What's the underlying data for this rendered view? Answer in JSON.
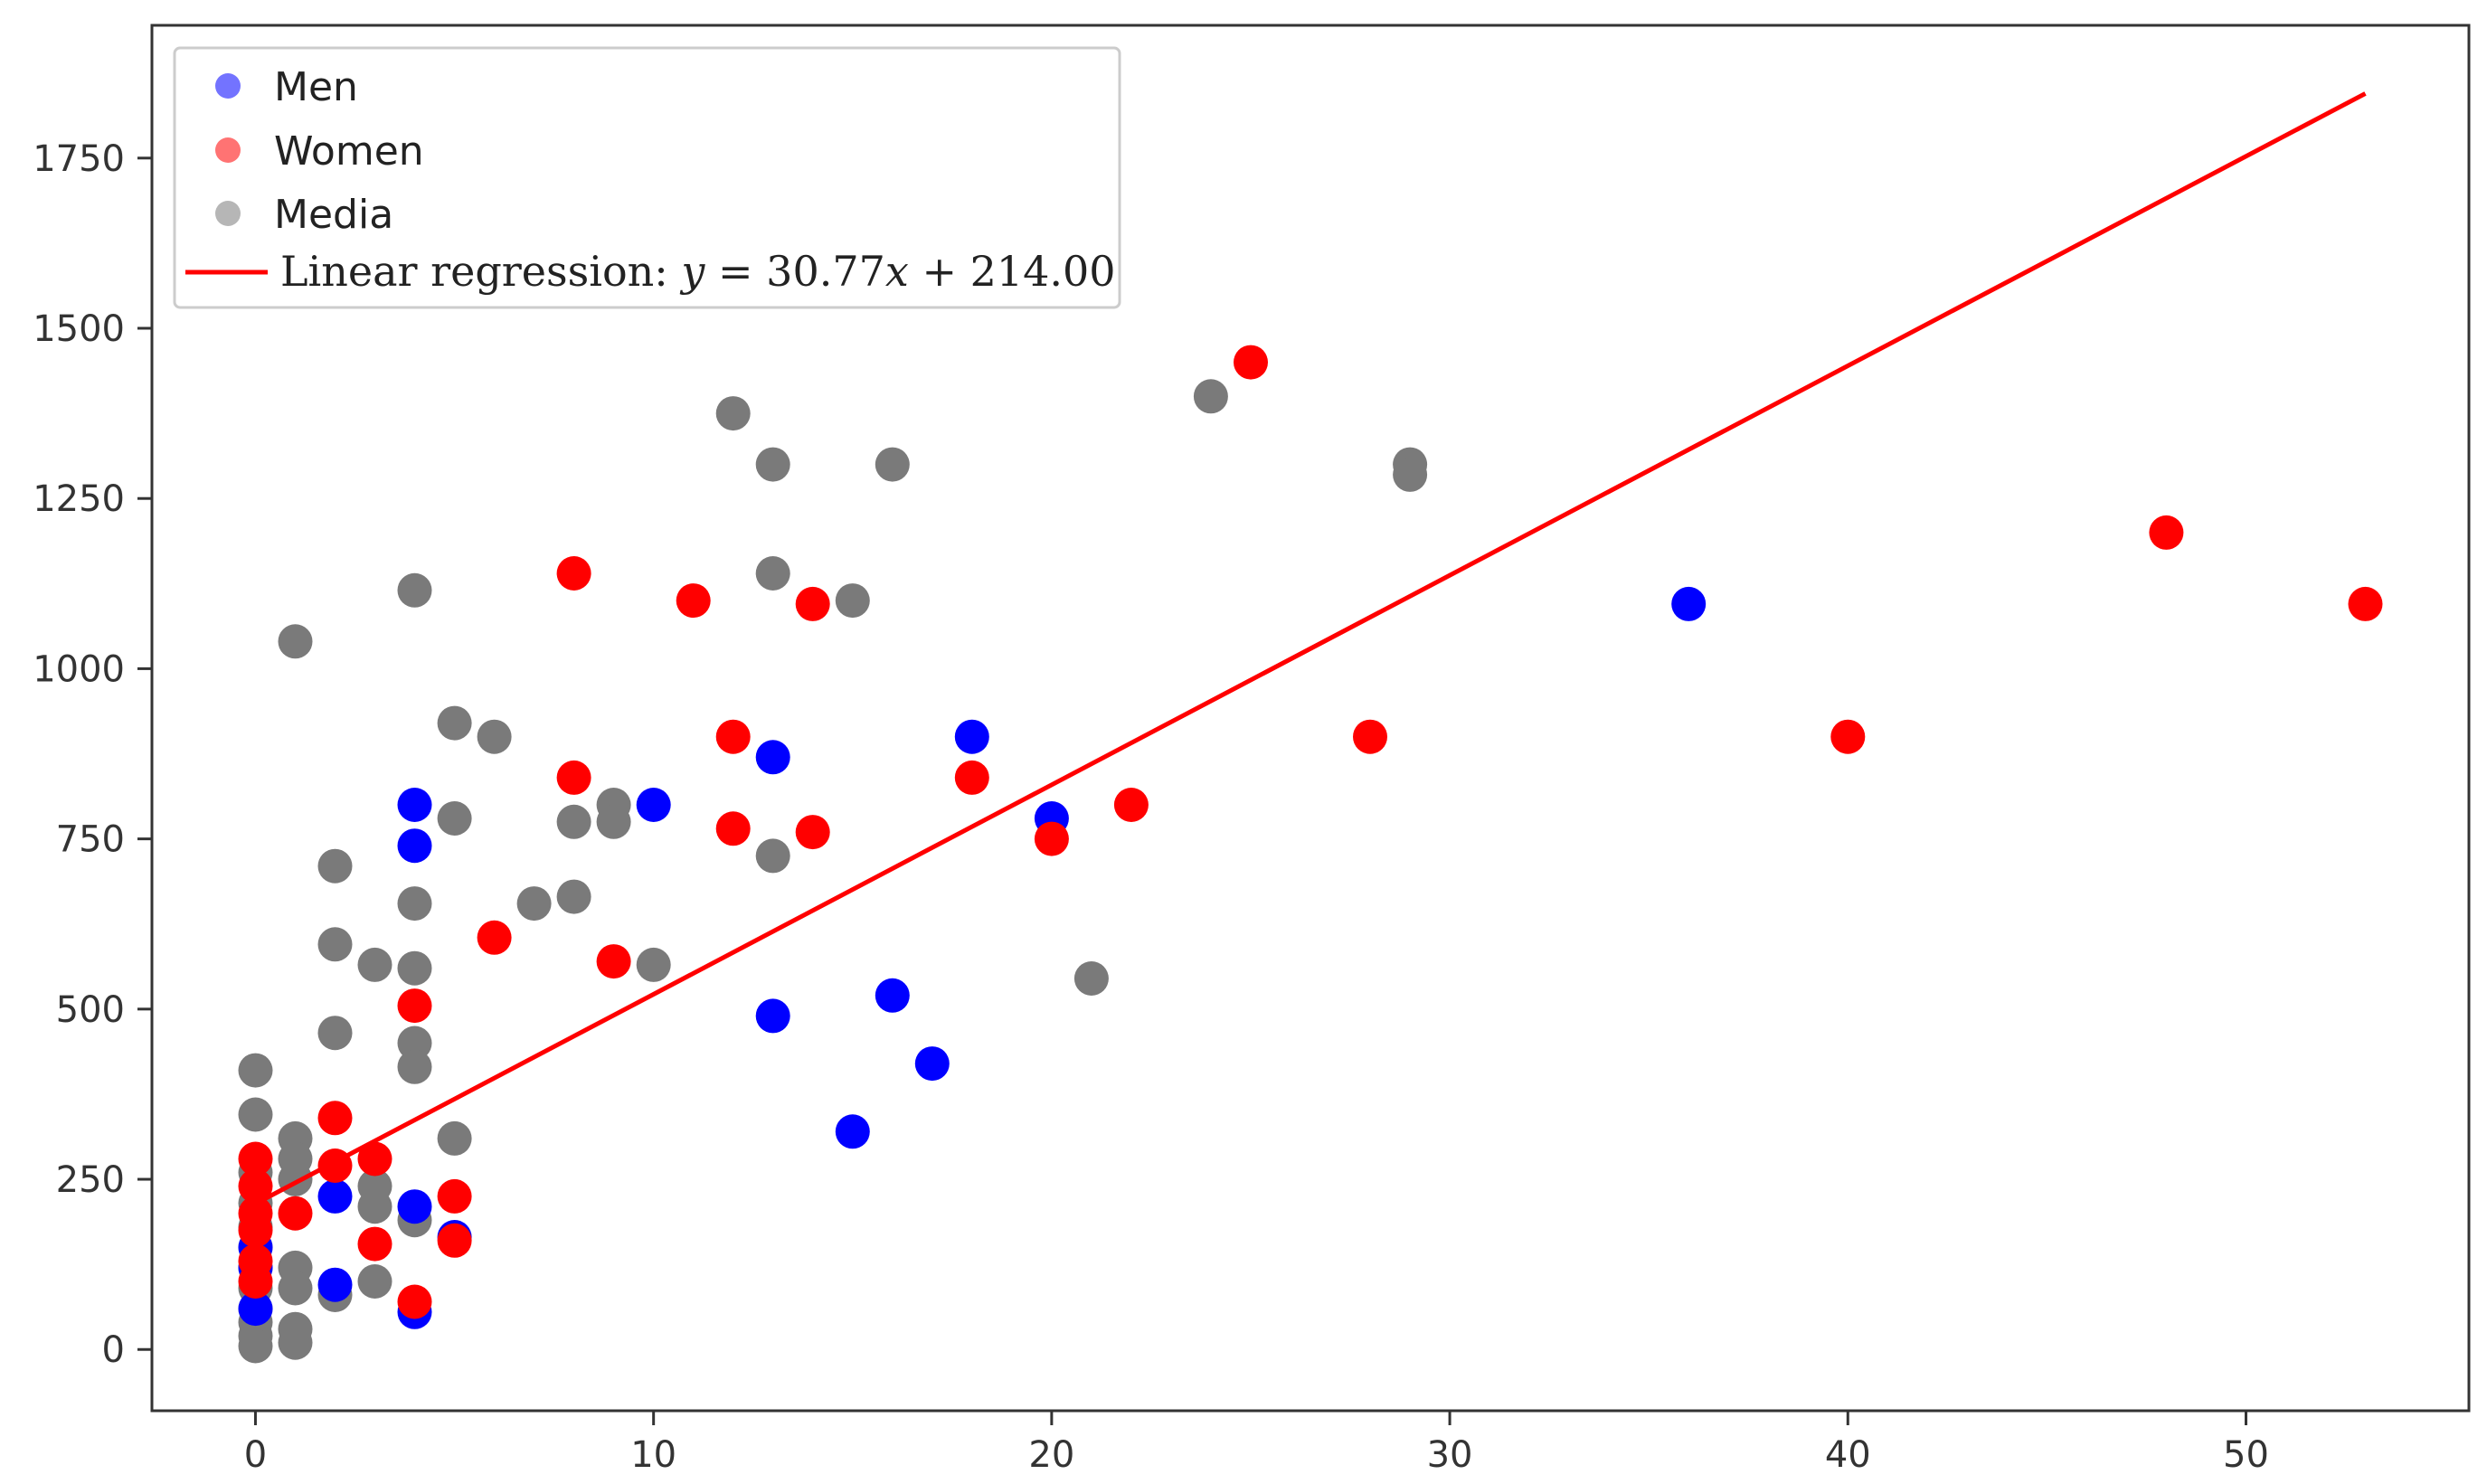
{
  "chart_data": {
    "type": "scatter",
    "title": "",
    "xlabel": "",
    "ylabel": "",
    "xlim": [
      -2.6,
      55.6
    ],
    "ylim": [
      -90,
      1945
    ],
    "x_ticks": [
      0,
      10,
      20,
      30,
      40,
      50
    ],
    "y_ticks": [
      0,
      250,
      500,
      750,
      1000,
      1250,
      1500,
      1750
    ],
    "grid": false,
    "legend_position": "top-left",
    "series": [
      {
        "name": "Men",
        "color": "#0000ff",
        "points": [
          [
            0,
            150
          ],
          [
            0,
            120
          ],
          [
            0,
            60
          ],
          [
            2,
            225
          ],
          [
            2,
            95
          ],
          [
            4,
            800
          ],
          [
            4,
            740
          ],
          [
            4,
            210
          ],
          [
            4,
            55
          ],
          [
            5,
            165
          ],
          [
            10,
            800
          ],
          [
            13,
            870
          ],
          [
            13,
            490
          ],
          [
            15,
            320
          ],
          [
            16,
            520
          ],
          [
            17,
            420
          ],
          [
            18,
            900
          ],
          [
            20,
            780
          ],
          [
            36,
            1095
          ]
        ]
      },
      {
        "name": "Women",
        "color": "#ff0000",
        "points": [
          [
            0,
            280
          ],
          [
            0,
            240
          ],
          [
            0,
            200
          ],
          [
            0,
            175
          ],
          [
            0,
            130
          ],
          [
            0,
            100
          ],
          [
            1,
            200
          ],
          [
            2,
            340
          ],
          [
            2,
            270
          ],
          [
            3,
            280
          ],
          [
            3,
            155
          ],
          [
            4,
            505
          ],
          [
            4,
            70
          ],
          [
            5,
            225
          ],
          [
            5,
            160
          ],
          [
            6,
            605
          ],
          [
            8,
            1140
          ],
          [
            8,
            840
          ],
          [
            9,
            570
          ],
          [
            11,
            1100
          ],
          [
            12,
            900
          ],
          [
            12,
            765
          ],
          [
            14,
            1095
          ],
          [
            14,
            760
          ],
          [
            18,
            840
          ],
          [
            20,
            750
          ],
          [
            22,
            800
          ],
          [
            25,
            1450
          ],
          [
            28,
            900
          ],
          [
            40,
            900
          ],
          [
            48,
            1200
          ],
          [
            53,
            1095
          ]
        ]
      },
      {
        "name": "Media",
        "color": "#7a7a7a",
        "points": [
          [
            0,
            410
          ],
          [
            0,
            345
          ],
          [
            0,
            260
          ],
          [
            0,
            215
          ],
          [
            0,
            180
          ],
          [
            0,
            150
          ],
          [
            0,
            120
          ],
          [
            0,
            90
          ],
          [
            0,
            60
          ],
          [
            0,
            40
          ],
          [
            0,
            20
          ],
          [
            0,
            5
          ],
          [
            1,
            1040
          ],
          [
            1,
            310
          ],
          [
            1,
            280
          ],
          [
            1,
            250
          ],
          [
            1,
            120
          ],
          [
            1,
            90
          ],
          [
            1,
            30
          ],
          [
            1,
            10
          ],
          [
            2,
            710
          ],
          [
            2,
            595
          ],
          [
            2,
            465
          ],
          [
            2,
            80
          ],
          [
            3,
            565
          ],
          [
            3,
            240
          ],
          [
            3,
            210
          ],
          [
            3,
            100
          ],
          [
            4,
            1115
          ],
          [
            4,
            655
          ],
          [
            4,
            560
          ],
          [
            4,
            450
          ],
          [
            4,
            415
          ],
          [
            4,
            190
          ],
          [
            5,
            920
          ],
          [
            5,
            780
          ],
          [
            5,
            310
          ],
          [
            6,
            900
          ],
          [
            7,
            655
          ],
          [
            8,
            775
          ],
          [
            8,
            665
          ],
          [
            9,
            800
          ],
          [
            9,
            775
          ],
          [
            10,
            565
          ],
          [
            12,
            1375
          ],
          [
            13,
            1300
          ],
          [
            13,
            1140
          ],
          [
            13,
            725
          ],
          [
            15,
            1100
          ],
          [
            16,
            1300
          ],
          [
            21,
            545
          ],
          [
            24,
            1400
          ],
          [
            29,
            1300
          ],
          [
            29,
            1285
          ]
        ]
      }
    ],
    "regression": {
      "label_prefix": "Linear regression: ",
      "label_var_y": "y",
      "label_eq": " = 30.77",
      "label_var_x": "x",
      "label_tail": " + 214.00",
      "slope": 30.77,
      "intercept": 214.0,
      "x_range": [
        0,
        53
      ],
      "color": "#ff0000"
    }
  }
}
